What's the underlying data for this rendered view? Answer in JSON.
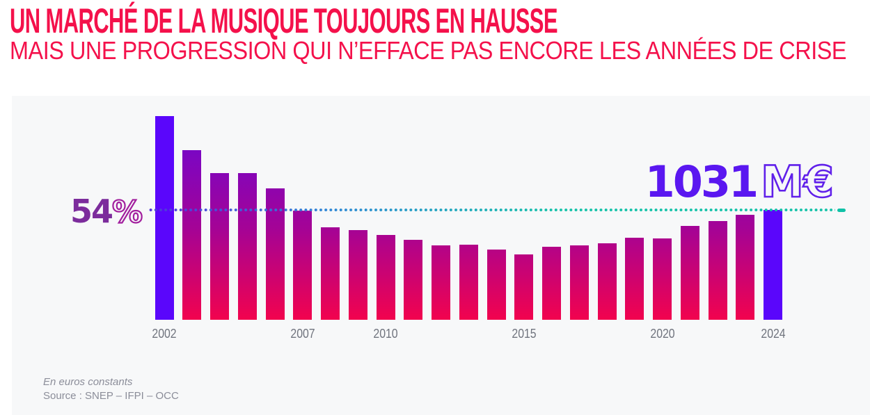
{
  "header": {
    "title": "UN MARCHÉ DE LA MUSIQUE TOUJOURS EN HAUSSE",
    "subtitle": "MAIS UNE PROGRESSION QUI N’EFFACE PAS ENCORE LES ANNÉES DE CRISE"
  },
  "chart_data": {
    "type": "bar",
    "title": "UN MARCHÉ DE LA MUSIQUE TOUJOURS EN HAUSSE",
    "subtitle": "MAIS UNE PROGRESSION QUI N’EFFACE PAS ENCORE LES ANNÉES DE CRISE",
    "unit": "M€",
    "note": "En euros constants",
    "categories": [
      2002,
      2003,
      2004,
      2005,
      2006,
      2007,
      2008,
      2009,
      2010,
      2011,
      2012,
      2013,
      2014,
      2015,
      2016,
      2017,
      2018,
      2019,
      2020,
      2021,
      2022,
      2023,
      2024
    ],
    "values": [
      1909,
      1590,
      1375,
      1380,
      1233,
      1025,
      870,
      840,
      795,
      750,
      700,
      705,
      660,
      613,
      688,
      700,
      718,
      772,
      762,
      881,
      927,
      985,
      1031
    ],
    "values_are_estimates_except_2024": true,
    "x_tick_years": [
      2002,
      2007,
      2010,
      2015,
      2020,
      2024
    ],
    "highlight_years": [
      2002,
      2024
    ],
    "reference_line": {
      "level": 1031,
      "style": "dotted",
      "label_left": "54%",
      "label_right": "1031 M€"
    },
    "ylim": [
      0,
      1950
    ],
    "grid": false,
    "legend": false
  },
  "annotations": {
    "left": {
      "value": "54",
      "suffix": "%"
    },
    "right": {
      "value": "1031",
      "suffix": "M€"
    }
  },
  "axis": {
    "labels": [
      "2002",
      "2007",
      "2010",
      "2015",
      "2020",
      "2024"
    ]
  },
  "footer": {
    "note": "En euros constants",
    "source": "Source : SNEP – IFPI – OCC"
  },
  "colors": {
    "accent": "#F4114B",
    "panel_bg": "#F7F8F9",
    "bar_top": "#7A06C4",
    "bar_mid": "#A50395",
    "bar_bottom": "#F2034E",
    "highlight": "#5A06FB",
    "dot_start": "#5433DB",
    "dot_end": "#10C1A7",
    "ann_left": "#7C2C9C",
    "ann_left_outline": "#A21F9E",
    "ann_right": "#5A17F0",
    "ann_right_outline": "#6020EA",
    "axis_text": "#70747E",
    "footer_text": "#8B8D99"
  }
}
